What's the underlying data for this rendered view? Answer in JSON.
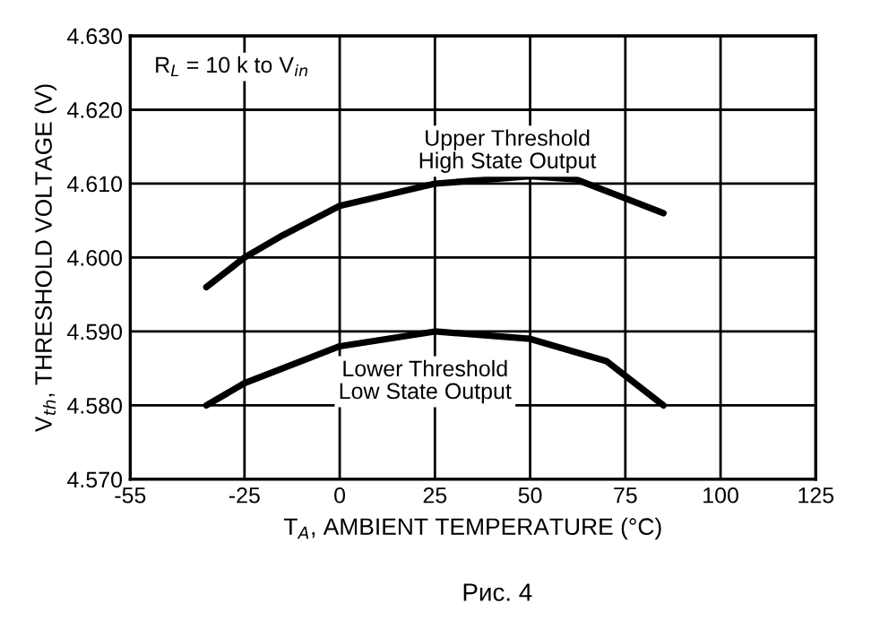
{
  "chart_data": {
    "type": "line",
    "xlabel": "T$_{A}$, AMBIENT TEMPERATURE (°C)",
    "ylabel": "V$_{th}$, THRESHOLD VOLTAGE (V)",
    "series": [
      {
        "color": "#000000",
        "x": [
          -35,
          -25,
          -15,
          0,
          25,
          50,
          62,
          75,
          85
        ],
        "values": [
          4.596,
          4.6,
          4.603,
          4.607,
          4.61,
          4.611,
          4.6106,
          4.608,
          4.606
        ]
      },
      {
        "color": "#000000",
        "x": [
          -35,
          -25,
          -15,
          0,
          25,
          50,
          70,
          85
        ],
        "values": [
          4.58,
          4.583,
          4.585,
          4.588,
          4.59,
          4.589,
          4.586,
          4.58
        ]
      }
    ],
    "annotations": [
      "R$_{L}$ = 10 k to V$_{in}$",
      "Upper Threshold\nHigh State Output",
      "Lower Threshold\nLow State Output",
      "Рис. 4"
    ],
    "xlim": [
      -55,
      125
    ],
    "xticks": [
      -55,
      -25,
      0,
      25,
      50,
      75,
      100,
      125
    ],
    "ylim": [
      4.57,
      4.63
    ],
    "yticks": [
      {
        "value": 4.57,
        "label": "4.570"
      },
      {
        "value": 4.58,
        "label": "4.580"
      },
      {
        "value": 4.59,
        "label": "4.590"
      },
      {
        "value": 4.6,
        "label": "4.600"
      },
      {
        "value": 4.61,
        "label": "4.610"
      },
      {
        "value": 4.62,
        "label": "4.620"
      },
      {
        "value": 4.63,
        "label": "4.630"
      }
    ],
    "grid": true,
    "marker": "none",
    "line_style": "solid",
    "legend": false
  }
}
